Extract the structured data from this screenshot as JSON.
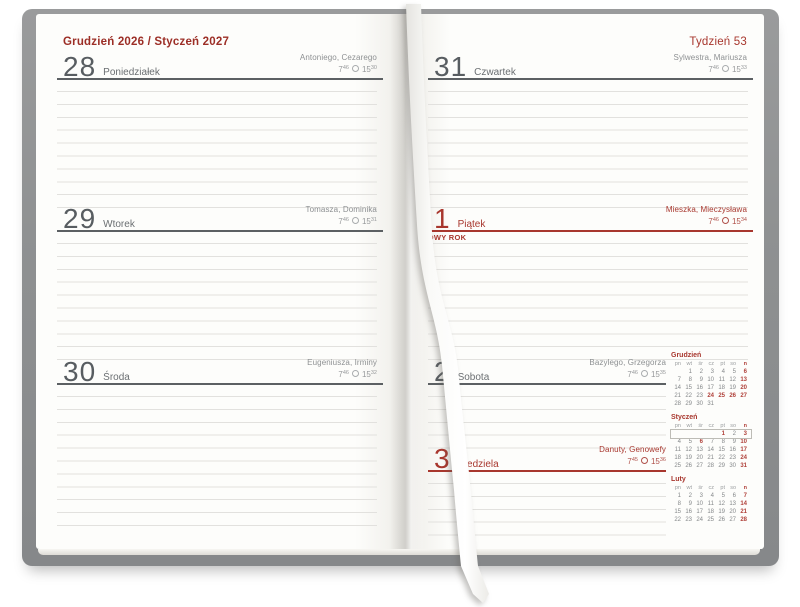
{
  "header": {
    "left_title": "Grudzień 2026 / Styczeń 2027",
    "right_title": "Tydzień 53"
  },
  "days": [
    {
      "number": "28",
      "weekday": "Poniedziałek",
      "names": "Antoniego, Cezarego",
      "sunrise_h": "7",
      "sunrise_m": "46",
      "sunset_h": "15",
      "sunset_m": "30",
      "holiday": "",
      "red": false
    },
    {
      "number": "29",
      "weekday": "Wtorek",
      "names": "Tomasza, Dominika",
      "sunrise_h": "7",
      "sunrise_m": "46",
      "sunset_h": "15",
      "sunset_m": "31",
      "holiday": "",
      "red": false
    },
    {
      "number": "30",
      "weekday": "Środa",
      "names": "Eugeniusza, Irminy",
      "sunrise_h": "7",
      "sunrise_m": "46",
      "sunset_h": "15",
      "sunset_m": "32",
      "holiday": "",
      "red": false
    },
    {
      "number": "31",
      "weekday": "Czwartek",
      "names": "Sylwestra, Mariusza",
      "sunrise_h": "7",
      "sunrise_m": "46",
      "sunset_h": "15",
      "sunset_m": "33",
      "holiday": "",
      "red": false
    },
    {
      "number": "1",
      "weekday": "Piątek",
      "names": "Mieszka, Mieczysława",
      "sunrise_h": "7",
      "sunrise_m": "46",
      "sunset_h": "15",
      "sunset_m": "34",
      "holiday": "NOWY ROK",
      "red": true
    },
    {
      "number": "2",
      "weekday": "Sobota",
      "names": "Bazylego, Grzegorza",
      "sunrise_h": "7",
      "sunrise_m": "46",
      "sunset_h": "15",
      "sunset_m": "35",
      "holiday": "",
      "red": false
    },
    {
      "number": "3",
      "weekday": "Niedziela",
      "names": "Danuty, Genowefy",
      "sunrise_h": "7",
      "sunrise_m": "45",
      "sunset_h": "15",
      "sunset_m": "36",
      "holiday": "",
      "red": true
    }
  ],
  "mini_calendars": [
    {
      "title": "Grudzień",
      "weekdays": [
        "pn",
        "wt",
        "śr",
        "cz",
        "pt",
        "so",
        "n"
      ],
      "rows": [
        [
          "",
          "1",
          "2",
          "3",
          "4",
          "5",
          "6"
        ],
        [
          "7",
          "8",
          "9",
          "10",
          "11",
          "12",
          "13"
        ],
        [
          "14",
          "15",
          "16",
          "17",
          "18",
          "19",
          "20"
        ],
        [
          "21",
          "22",
          "23",
          "24",
          "25",
          "26",
          "27"
        ],
        [
          "28",
          "29",
          "30",
          "31",
          "",
          "",
          ""
        ]
      ],
      "red_days": [
        6,
        13,
        20,
        24,
        25,
        26,
        27
      ],
      "current_week_row": -1
    },
    {
      "title": "Styczeń",
      "weekdays": [
        "pn",
        "wt",
        "śr",
        "cz",
        "pt",
        "so",
        "n"
      ],
      "rows": [
        [
          "",
          "",
          "",
          "",
          "1",
          "2",
          "3"
        ],
        [
          "4",
          "5",
          "6",
          "7",
          "8",
          "9",
          "10"
        ],
        [
          "11",
          "12",
          "13",
          "14",
          "15",
          "16",
          "17"
        ],
        [
          "18",
          "19",
          "20",
          "21",
          "22",
          "23",
          "24"
        ],
        [
          "25",
          "26",
          "27",
          "28",
          "29",
          "30",
          "31"
        ]
      ],
      "red_days": [
        1,
        3,
        6,
        10,
        17,
        24,
        31
      ],
      "current_week_row": 0
    },
    {
      "title": "Luty",
      "weekdays": [
        "pn",
        "wt",
        "śr",
        "cz",
        "pt",
        "so",
        "n"
      ],
      "rows": [
        [
          "1",
          "2",
          "3",
          "4",
          "5",
          "6",
          "7"
        ],
        [
          "8",
          "9",
          "10",
          "11",
          "12",
          "13",
          "14"
        ],
        [
          "15",
          "16",
          "17",
          "18",
          "19",
          "20",
          "21"
        ],
        [
          "22",
          "23",
          "24",
          "25",
          "26",
          "27",
          "28"
        ]
      ],
      "red_days": [
        7,
        14,
        21,
        28
      ],
      "current_week_row": -1
    }
  ],
  "colors": {
    "accent_red": "#a8372e",
    "calendar_red": "#b0413a",
    "cover_gray": "#8f9192",
    "page_white": "#fdfdfb"
  }
}
